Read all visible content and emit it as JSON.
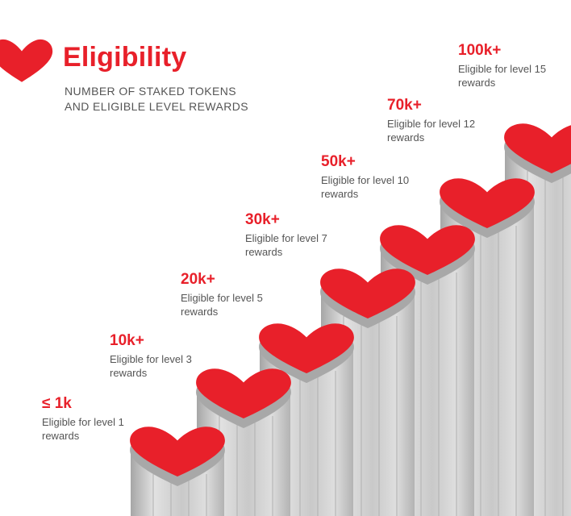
{
  "header": {
    "title": "Eligibility",
    "subtitle_line1": "NUMBER OF STAKED TOKENS",
    "subtitle_line2": "AND ELIGIBLE LEVEL REWARDS",
    "icon": "heart-icon"
  },
  "tiers": [
    {
      "amount": "≤ 1k",
      "description": "Eligible for level 1 rewards"
    },
    {
      "amount": "10k+",
      "description": "Eligible for level 3 rewards"
    },
    {
      "amount": "20k+",
      "description": "Eligible for level 5 rewards"
    },
    {
      "amount": "30k+",
      "description": "Eligible for level 7 rewards"
    },
    {
      "amount": "50k+",
      "description": "Eligible for level 10 rewards"
    },
    {
      "amount": "70k+",
      "description": "Eligible for level 12 rewards"
    },
    {
      "amount": "100k+",
      "description": "Eligible for level 15 rewards"
    }
  ],
  "colors": {
    "accent": "#e8202a",
    "text": "#555555",
    "pillar_light": "#dcdcdc",
    "pillar_mid": "#bfbfbf",
    "pillar_dark": "#9c9c9c"
  }
}
